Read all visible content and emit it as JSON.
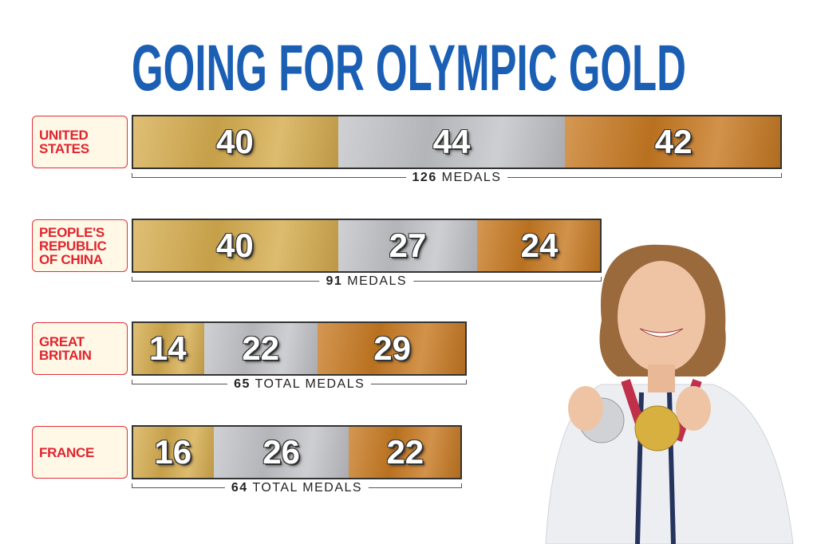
{
  "chart_data": {
    "type": "bar",
    "orientation": "horizontal",
    "stacked": true,
    "title": "GOING FOR OLYMPIC GOLD",
    "categories": [
      "UNITED\nSTATES",
      "PEOPLE'S\nREPUBLIC\nOF CHINA",
      "GREAT\nBRITAIN",
      "FRANCE"
    ],
    "series": [
      {
        "color": "#d6ad4f",
        "values": [
          40,
          40,
          14,
          16
        ]
      },
      {
        "color": "#c3c4c8",
        "values": [
          44,
          27,
          22,
          26
        ]
      },
      {
        "color": "#c87a22",
        "values": [
          42,
          24,
          29,
          22
        ]
      }
    ],
    "totals": [
      126,
      91,
      65,
      64
    ],
    "total_labels": [
      "MEDALS",
      "MEDALS",
      "TOTAL MEDALS",
      "TOTAL MEDALS"
    ],
    "xlim": [
      0,
      126
    ]
  }
}
